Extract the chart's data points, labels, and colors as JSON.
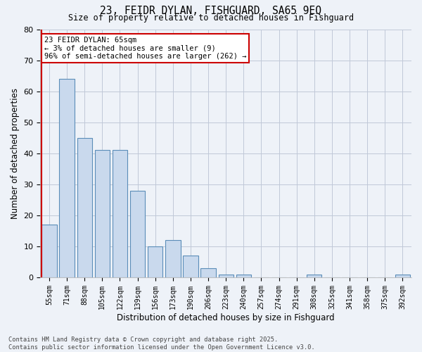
{
  "title_line1": "23, FEIDR DYLAN, FISHGUARD, SA65 9EQ",
  "title_line2": "Size of property relative to detached houses in Fishguard",
  "xlabel": "Distribution of detached houses by size in Fishguard",
  "ylabel": "Number of detached properties",
  "categories": [
    "55sqm",
    "71sqm",
    "88sqm",
    "105sqm",
    "122sqm",
    "139sqm",
    "156sqm",
    "173sqm",
    "190sqm",
    "206sqm",
    "223sqm",
    "240sqm",
    "257sqm",
    "274sqm",
    "291sqm",
    "308sqm",
    "325sqm",
    "341sqm",
    "358sqm",
    "375sqm",
    "392sqm"
  ],
  "values": [
    17,
    64,
    45,
    41,
    41,
    28,
    10,
    12,
    7,
    3,
    1,
    1,
    0,
    0,
    0,
    1,
    0,
    0,
    0,
    0,
    1
  ],
  "bar_color": "#c9d9ed",
  "bar_edge_color": "#5b8db8",
  "annotation_box_text": "23 FEIDR DYLAN: 65sqm\n← 3% of detached houses are smaller (9)\n96% of semi-detached houses are larger (262) →",
  "annotation_box_color": "#ffffff",
  "annotation_box_edge_color": "#cc0000",
  "annotation_line_color": "#cc0000",
  "annotation_bar_index": 0,
  "ylim": [
    0,
    80
  ],
  "yticks": [
    0,
    10,
    20,
    30,
    40,
    50,
    60,
    70,
    80
  ],
  "grid_color": "#c0c8d8",
  "background_color": "#eef2f8",
  "footer_line1": "Contains HM Land Registry data © Crown copyright and database right 2025.",
  "footer_line2": "Contains public sector information licensed under the Open Government Licence v3.0."
}
